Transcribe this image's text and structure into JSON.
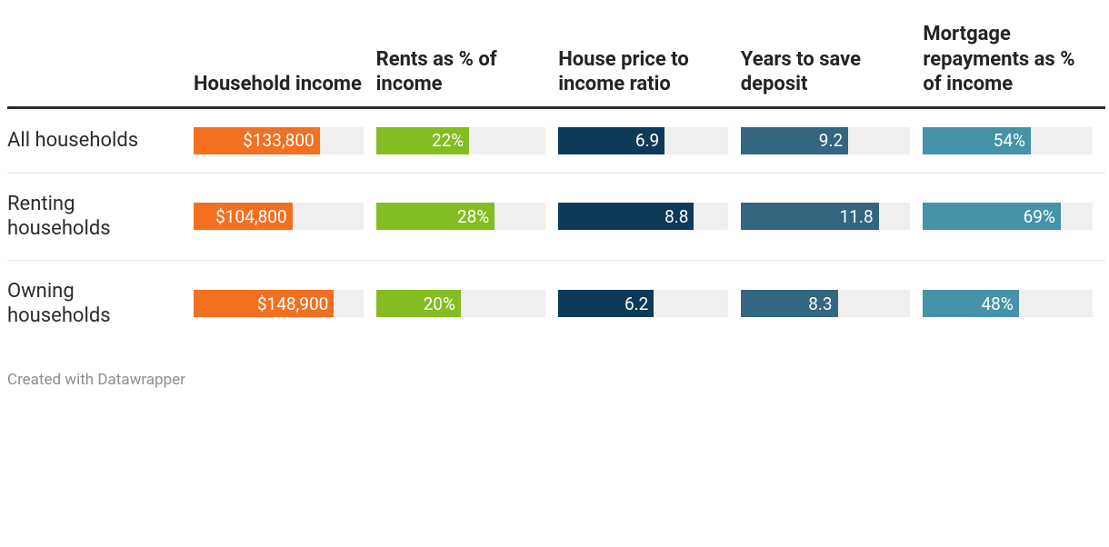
{
  "table": {
    "type": "table-with-bars",
    "background_color": "#ffffff",
    "bar_track_color": "#efefef",
    "text_color": "#2c2c2c",
    "header_fontsize": 22,
    "body_fontsize": 22,
    "bar_value_fontsize": 19,
    "columns": [
      {
        "key": "rowlabel",
        "header": ""
      },
      {
        "key": "income",
        "header": "Household income",
        "bar_color": "#f37021",
        "max": 180000
      },
      {
        "key": "rents",
        "header": "Rents as % of income",
        "bar_color": "#84bd22",
        "max": 40
      },
      {
        "key": "ratio",
        "header": "House price to income ratio",
        "bar_color": "#0e3a5a",
        "max": 11
      },
      {
        "key": "years",
        "header": "Years to save deposit",
        "bar_color": "#336680",
        "max": 14.5
      },
      {
        "key": "mortg",
        "header": "Mortgage repayments as % of income",
        "bar_color": "#4593a8",
        "max": 85
      }
    ],
    "rows": [
      {
        "rowlabel": "All households",
        "income": {
          "value": 133800,
          "display": "$133,800"
        },
        "rents": {
          "value": 22,
          "display": "22%"
        },
        "ratio": {
          "value": 6.9,
          "display": "6.9"
        },
        "years": {
          "value": 9.2,
          "display": "9.2"
        },
        "mortg": {
          "value": 54,
          "display": "54%"
        }
      },
      {
        "rowlabel": "Renting households",
        "income": {
          "value": 104800,
          "display": "$104,800"
        },
        "rents": {
          "value": 28,
          "display": "28%"
        },
        "ratio": {
          "value": 8.8,
          "display": "8.8"
        },
        "years": {
          "value": 11.8,
          "display": "11.8"
        },
        "mortg": {
          "value": 69,
          "display": "69%"
        }
      },
      {
        "rowlabel": "Owning households",
        "income": {
          "value": 148900,
          "display": "$148,900"
        },
        "rents": {
          "value": 20,
          "display": "20%"
        },
        "ratio": {
          "value": 6.2,
          "display": "6.2"
        },
        "years": {
          "value": 8.3,
          "display": "8.3"
        },
        "mortg": {
          "value": 48,
          "display": "48%"
        }
      }
    ]
  },
  "attribution": "Created with Datawrapper"
}
